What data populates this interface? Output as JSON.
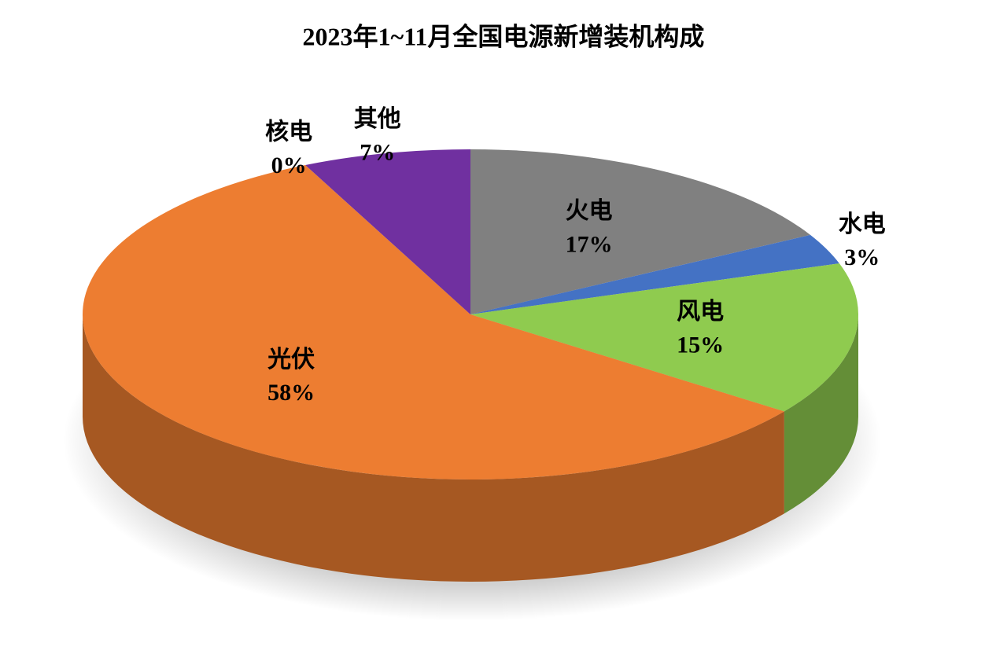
{
  "chart_data": {
    "type": "pie",
    "title": "2023年1~11月全国电源新增装机构成",
    "categories": [
      "火电",
      "水电",
      "风电",
      "光伏",
      "核电",
      "其他"
    ],
    "values": [
      17,
      3,
      15,
      58,
      0,
      7
    ],
    "value_labels": [
      "17%",
      "3%",
      "15%",
      "58%",
      "0%",
      "7%"
    ],
    "colors": [
      "#808080",
      "#4472c4",
      "#8fcb4f",
      "#ed7d31",
      "#4472c4",
      "#7030a0"
    ]
  }
}
